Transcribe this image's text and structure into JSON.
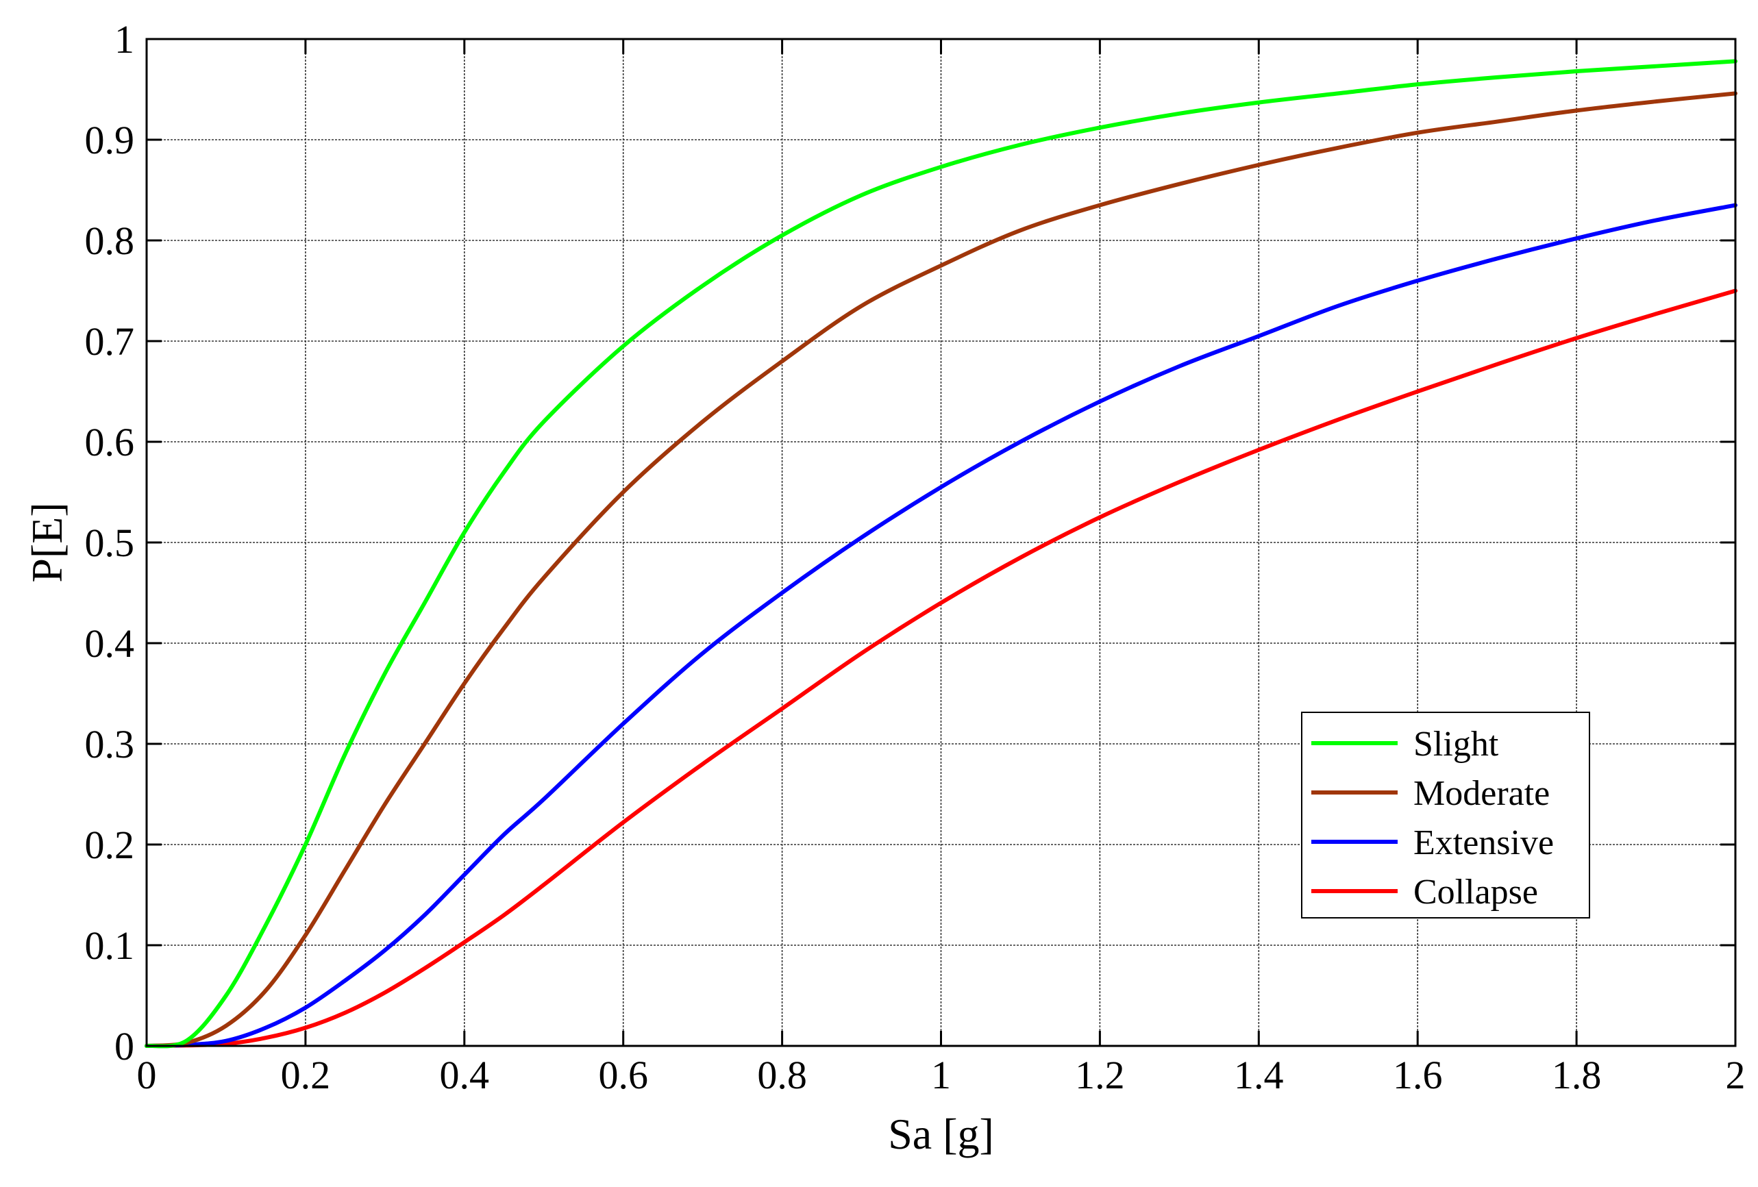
{
  "chart_data": {
    "type": "line",
    "title": "",
    "xlabel": "Sa [g]",
    "ylabel": "P[E]",
    "xlim": [
      0,
      2
    ],
    "ylim": [
      0,
      1
    ],
    "x_ticks": [
      0,
      0.2,
      0.4,
      0.6,
      0.8,
      1,
      1.2,
      1.4,
      1.6,
      1.8,
      2
    ],
    "x_tick_labels": [
      "0",
      "0.2",
      "0.4",
      "0.6",
      "0.8",
      "1",
      "1.2",
      "1.4",
      "1.6",
      "1.8",
      "2"
    ],
    "y_ticks": [
      0,
      0.1,
      0.2,
      0.3,
      0.4,
      0.5,
      0.6,
      0.7,
      0.8,
      0.9,
      1
    ],
    "y_tick_labels": [
      "0",
      "0.1",
      "0.2",
      "0.3",
      "0.4",
      "0.5",
      "0.6",
      "0.7",
      "0.8",
      "0.9",
      "1"
    ],
    "grid": true,
    "legend_position": "bottom-right",
    "series": [
      {
        "name": "Slight",
        "color": "#00ff00",
        "x": [
          0,
          0.05,
          0.1,
          0.15,
          0.2,
          0.25,
          0.3,
          0.35,
          0.4,
          0.45,
          0.5,
          0.6,
          0.7,
          0.8,
          0.9,
          1.0,
          1.1,
          1.2,
          1.3,
          1.4,
          1.5,
          1.6,
          1.7,
          1.8,
          1.9,
          2.0
        ],
        "y": [
          0,
          0.005,
          0.05,
          0.12,
          0.2,
          0.29,
          0.37,
          0.44,
          0.51,
          0.57,
          0.62,
          0.695,
          0.755,
          0.805,
          0.845,
          0.873,
          0.895,
          0.912,
          0.926,
          0.937,
          0.946,
          0.955,
          0.962,
          0.968,
          0.973,
          0.978
        ]
      },
      {
        "name": "Moderate",
        "color": "#a0360a",
        "x": [
          0,
          0.05,
          0.1,
          0.15,
          0.2,
          0.25,
          0.3,
          0.35,
          0.4,
          0.45,
          0.5,
          0.6,
          0.7,
          0.8,
          0.9,
          1.0,
          1.1,
          1.2,
          1.3,
          1.4,
          1.5,
          1.6,
          1.7,
          1.8,
          1.9,
          2.0
        ],
        "y": [
          0,
          0.003,
          0.02,
          0.055,
          0.11,
          0.175,
          0.24,
          0.3,
          0.36,
          0.415,
          0.465,
          0.55,
          0.62,
          0.68,
          0.735,
          0.775,
          0.81,
          0.835,
          0.856,
          0.875,
          0.892,
          0.907,
          0.918,
          0.929,
          0.938,
          0.946
        ]
      },
      {
        "name": "Extensive",
        "color": "#0000ff",
        "x": [
          0,
          0.05,
          0.1,
          0.15,
          0.2,
          0.25,
          0.3,
          0.35,
          0.4,
          0.45,
          0.5,
          0.6,
          0.7,
          0.8,
          0.9,
          1.0,
          1.1,
          1.2,
          1.3,
          1.4,
          1.5,
          1.6,
          1.7,
          1.8,
          1.9,
          2.0
        ],
        "y": [
          0,
          0.001,
          0.005,
          0.018,
          0.038,
          0.065,
          0.095,
          0.13,
          0.17,
          0.21,
          0.245,
          0.32,
          0.39,
          0.45,
          0.505,
          0.555,
          0.6,
          0.64,
          0.675,
          0.705,
          0.735,
          0.76,
          0.782,
          0.802,
          0.82,
          0.835
        ]
      },
      {
        "name": "Collapse",
        "color": "#ff0000",
        "x": [
          0,
          0.05,
          0.1,
          0.15,
          0.2,
          0.25,
          0.3,
          0.35,
          0.4,
          0.45,
          0.5,
          0.6,
          0.7,
          0.8,
          0.9,
          1.0,
          1.1,
          1.2,
          1.3,
          1.4,
          1.5,
          1.6,
          1.7,
          1.8,
          1.9,
          2.0
        ],
        "y": [
          0,
          0.0005,
          0.002,
          0.008,
          0.018,
          0.033,
          0.053,
          0.077,
          0.103,
          0.13,
          0.16,
          0.222,
          0.28,
          0.335,
          0.39,
          0.44,
          0.485,
          0.525,
          0.56,
          0.592,
          0.622,
          0.65,
          0.677,
          0.703,
          0.727,
          0.75
        ]
      }
    ]
  }
}
